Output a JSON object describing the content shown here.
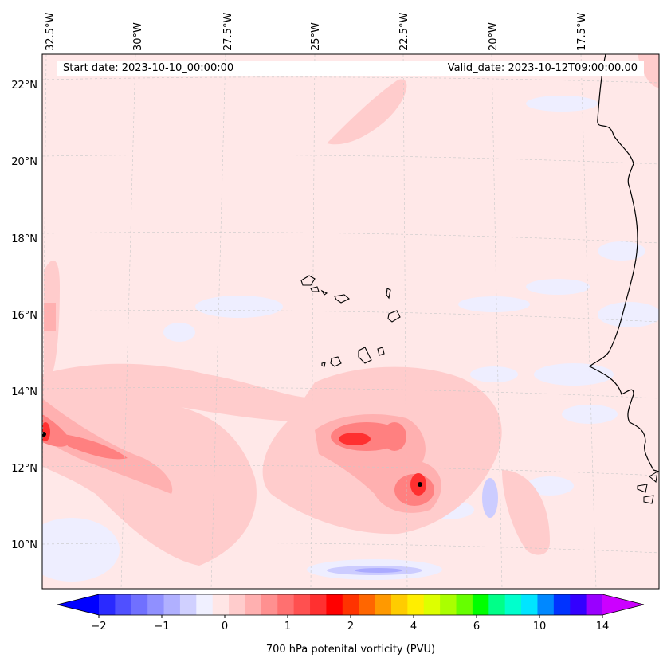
{
  "start_date_text": "Start date: 2023-10-10_00:00:00",
  "valid_date_text": "Valid_date: 2023-10-12T09:00:00.00",
  "longitude_labels": [
    "32.5°W",
    "30°W",
    "27.5°W",
    "25°W",
    "22.5°W",
    "20°W",
    "17.5°W"
  ],
  "latitude_labels": [
    "22°N",
    "20°N",
    "18°N",
    "16°N",
    "14°N",
    "12°N",
    "10°N"
  ],
  "colorbar": {
    "title": "700 hPa potenital vorticity (PVU)",
    "tick_labels": [
      "−2",
      "−1",
      "0",
      "1",
      "2",
      "4",
      "6",
      "10",
      "14"
    ],
    "colors": [
      "#0000ff",
      "#2a2aff",
      "#5050ff",
      "#7070ff",
      "#9090ff",
      "#b0b0ff",
      "#d0d0ff",
      "#f0f0ff",
      "#ffe6e6",
      "#ffcccc",
      "#ffb0b0",
      "#ff9090",
      "#ff7070",
      "#ff5050",
      "#ff3030",
      "#ff0000",
      "#ff3300",
      "#ff6600",
      "#ff9900",
      "#ffcc00",
      "#ffee00",
      "#ddff00",
      "#aaff00",
      "#66ff00",
      "#00ff00",
      "#00ff88",
      "#00ffcc",
      "#00e5ff",
      "#0088ff",
      "#0033ff",
      "#3300ff",
      "#9900ff",
      "#cc00ff"
    ]
  }
}
